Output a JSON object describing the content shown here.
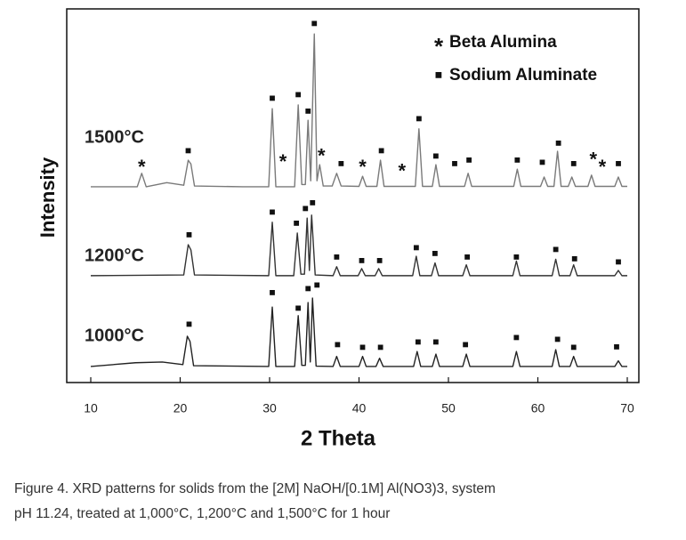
{
  "chart_data": {
    "type": "line",
    "xlabel": "2 Theta",
    "ylabel": "Intensity",
    "xlim": [
      10,
      70
    ],
    "xticks": [
      10,
      20,
      30,
      40,
      50,
      60,
      70
    ],
    "ylim": [
      0,
      100
    ],
    "legend": [
      {
        "symbol": "*",
        "label": "Beta Alumina"
      },
      {
        "symbol": "■",
        "label": "Sodium Aluminate"
      }
    ],
    "series": [
      {
        "name": "1500°C",
        "color": "#7a7a7a",
        "x": [
          10,
          15.2,
          15.7,
          16.2,
          18.5,
          20.4,
          20.9,
          21.2,
          21.6,
          27,
          29.9,
          30.3,
          30.7,
          32.8,
          33.2,
          33.6,
          34.0,
          34.3,
          34.6,
          35.0,
          35.3,
          35.6,
          36.0,
          37.0,
          37.5,
          38.0,
          40.0,
          40.4,
          40.8,
          42.0,
          42.4,
          42.8,
          46.3,
          46.7,
          47.1,
          48.2,
          48.6,
          49.0,
          51.8,
          52.2,
          52.6,
          57.3,
          57.7,
          58.1,
          60.3,
          60.7,
          61.1,
          61.8,
          62.2,
          62.6,
          63.4,
          63.8,
          64.2,
          65.6,
          66.0,
          66.4,
          68.6,
          69.0,
          69.4,
          70
        ],
        "values": [
          52.4,
          52.4,
          56,
          52.4,
          53.5,
          52.8,
          59.5,
          58.5,
          52.6,
          52.4,
          52.4,
          73.3,
          52.4,
          52.4,
          74.3,
          53,
          53,
          70.2,
          54,
          93.3,
          54,
          58.3,
          52.6,
          52.6,
          56,
          52.6,
          52.5,
          55.2,
          52.5,
          52.5,
          59.5,
          52.5,
          52.5,
          67.9,
          52.5,
          52.5,
          58.3,
          52.5,
          52.5,
          56,
          52.5,
          52.5,
          57.1,
          52.5,
          52.5,
          55,
          52.5,
          52.5,
          61.9,
          52.5,
          52.5,
          55,
          52.5,
          52.5,
          55.5,
          52.5,
          52.5,
          55,
          52.5,
          52.5
        ],
        "markers": [
          {
            "x": 15.7,
            "y": 58.5,
            "symbol": "*"
          },
          {
            "x": 20.9,
            "y": 62,
            "symbol": "■"
          },
          {
            "x": 30.3,
            "y": 76,
            "symbol": "■"
          },
          {
            "x": 31.5,
            "y": 60,
            "symbol": "*"
          },
          {
            "x": 33.2,
            "y": 77,
            "symbol": "■"
          },
          {
            "x": 34.3,
            "y": 72.5,
            "symbol": "■"
          },
          {
            "x": 35.0,
            "y": 96,
            "symbol": "■"
          },
          {
            "x": 35.8,
            "y": 61.5,
            "symbol": "*"
          },
          {
            "x": 38.0,
            "y": 58.5,
            "symbol": "■"
          },
          {
            "x": 40.4,
            "y": 58.5,
            "symbol": "*"
          },
          {
            "x": 42.5,
            "y": 62,
            "symbol": "■"
          },
          {
            "x": 44.8,
            "y": 57.5,
            "symbol": "*"
          },
          {
            "x": 46.7,
            "y": 70.5,
            "symbol": "■"
          },
          {
            "x": 48.6,
            "y": 60.5,
            "symbol": "■"
          },
          {
            "x": 50.7,
            "y": 58.5,
            "symbol": "■"
          },
          {
            "x": 52.3,
            "y": 59.5,
            "symbol": "■"
          },
          {
            "x": 57.7,
            "y": 59.5,
            "symbol": "■"
          },
          {
            "x": 60.5,
            "y": 58.8,
            "symbol": "■"
          },
          {
            "x": 62.3,
            "y": 64,
            "symbol": "■"
          },
          {
            "x": 64,
            "y": 58.5,
            "symbol": "■"
          },
          {
            "x": 66.2,
            "y": 60.5,
            "symbol": "*"
          },
          {
            "x": 67.2,
            "y": 58.5,
            "symbol": "*"
          },
          {
            "x": 69,
            "y": 58.5,
            "symbol": "■"
          }
        ]
      },
      {
        "name": "1200°C",
        "color": "#333333",
        "x": [
          10,
          20.4,
          20.9,
          21.2,
          21.6,
          29.9,
          30.3,
          30.7,
          32.7,
          33.1,
          33.5,
          33.9,
          34.2,
          34.45,
          34.7,
          35.1,
          37.1,
          37.5,
          37.9,
          39.9,
          40.3,
          40.7,
          41.8,
          42.2,
          42.6,
          46.0,
          46.4,
          46.8,
          48.1,
          48.5,
          48.9,
          51.6,
          52.0,
          52.4,
          57.2,
          57.6,
          58.0,
          61.6,
          62.0,
          62.4,
          63.6,
          64.0,
          64.4,
          68.6,
          69.0,
          69.4,
          70
        ],
        "values": [
          28.6,
          28.8,
          36.9,
          35.5,
          28.8,
          28.6,
          42.9,
          28.6,
          28.6,
          40,
          29,
          29,
          44,
          30,
          44.8,
          28.8,
          28.6,
          31,
          28.6,
          28.6,
          30.5,
          28.6,
          28.6,
          30.5,
          28.6,
          28.6,
          33.8,
          28.6,
          28.6,
          32,
          28.6,
          28.6,
          31.5,
          28.6,
          28.6,
          32.5,
          28.6,
          28.6,
          33,
          28.6,
          28.6,
          31.5,
          28.6,
          28.6,
          30,
          28.6,
          28.6
        ],
        "markers": [
          {
            "x": 21.0,
            "y": 39.5,
            "symbol": "■"
          },
          {
            "x": 30.3,
            "y": 45.5,
            "symbol": "■"
          },
          {
            "x": 33.0,
            "y": 42.5,
            "symbol": "■"
          },
          {
            "x": 34.0,
            "y": 46.5,
            "symbol": "■"
          },
          {
            "x": 34.8,
            "y": 48,
            "symbol": "■"
          },
          {
            "x": 37.5,
            "y": 33.5,
            "symbol": "■"
          },
          {
            "x": 40.3,
            "y": 32.5,
            "symbol": "■"
          },
          {
            "x": 42.3,
            "y": 32.5,
            "symbol": "■"
          },
          {
            "x": 46.4,
            "y": 36,
            "symbol": "■"
          },
          {
            "x": 48.5,
            "y": 34.5,
            "symbol": "■"
          },
          {
            "x": 52.1,
            "y": 33.5,
            "symbol": "■"
          },
          {
            "x": 57.6,
            "y": 33.5,
            "symbol": "■"
          },
          {
            "x": 62,
            "y": 35.5,
            "symbol": "■"
          },
          {
            "x": 64.1,
            "y": 33,
            "symbol": "■"
          },
          {
            "x": 69,
            "y": 32.2,
            "symbol": "■"
          }
        ]
      },
      {
        "name": "1000°C",
        "color": "#222222",
        "x": [
          10,
          15,
          18,
          20.3,
          20.8,
          21.1,
          21.5,
          29.9,
          30.3,
          30.7,
          32.8,
          33.2,
          33.6,
          34.0,
          34.3,
          34.55,
          34.8,
          35.2,
          37.1,
          37.5,
          37.9,
          40.0,
          40.4,
          40.8,
          41.9,
          42.3,
          42.7,
          46.1,
          46.5,
          46.9,
          48.2,
          48.6,
          49.0,
          51.6,
          52.0,
          52.4,
          57.2,
          57.6,
          58.0,
          61.6,
          62.0,
          62.4,
          63.6,
          64.0,
          64.4,
          68.6,
          69.0,
          69.4,
          70
        ],
        "values": [
          4.3,
          5.3,
          5.5,
          4.8,
          12.4,
          11,
          4.5,
          4.3,
          20.2,
          4.3,
          4.3,
          17.9,
          4.6,
          4.6,
          21.4,
          5.5,
          22.6,
          4.4,
          4.3,
          7,
          4.3,
          4.3,
          7,
          4.3,
          4.3,
          6.5,
          4.3,
          4.3,
          8.3,
          4.3,
          4.3,
          7.6,
          4.3,
          4.3,
          7.6,
          4.3,
          4.3,
          8.3,
          4.3,
          4.3,
          8.8,
          4.3,
          4.3,
          7,
          4.3,
          4.3,
          5.8,
          4.3,
          4.3
        ],
        "markers": [
          {
            "x": 21.0,
            "y": 15.5,
            "symbol": "■"
          },
          {
            "x": 30.3,
            "y": 24,
            "symbol": "■"
          },
          {
            "x": 33.2,
            "y": 19.8,
            "symbol": "■"
          },
          {
            "x": 34.3,
            "y": 25,
            "symbol": "■"
          },
          {
            "x": 35.3,
            "y": 26,
            "symbol": "■"
          },
          {
            "x": 37.6,
            "y": 10,
            "symbol": "■"
          },
          {
            "x": 40.4,
            "y": 9.3,
            "symbol": "■"
          },
          {
            "x": 42.4,
            "y": 9.3,
            "symbol": "■"
          },
          {
            "x": 46.6,
            "y": 10.8,
            "symbol": "■"
          },
          {
            "x": 48.6,
            "y": 10.8,
            "symbol": "■"
          },
          {
            "x": 51.9,
            "y": 10,
            "symbol": "■"
          },
          {
            "x": 57.6,
            "y": 12,
            "symbol": "■"
          },
          {
            "x": 62.2,
            "y": 11.5,
            "symbol": "■"
          },
          {
            "x": 64,
            "y": 9.3,
            "symbol": "■"
          },
          {
            "x": 68.8,
            "y": 9.5,
            "symbol": "■"
          }
        ]
      }
    ],
    "caption": [
      "Figure 4. XRD patterns for solids from the [2M] NaOH/[0.1M] Al(NO3)3, system",
      "pH 11.24, treated at 1,000°C, 1,200°C and 1,500°C for  1 hour"
    ]
  }
}
